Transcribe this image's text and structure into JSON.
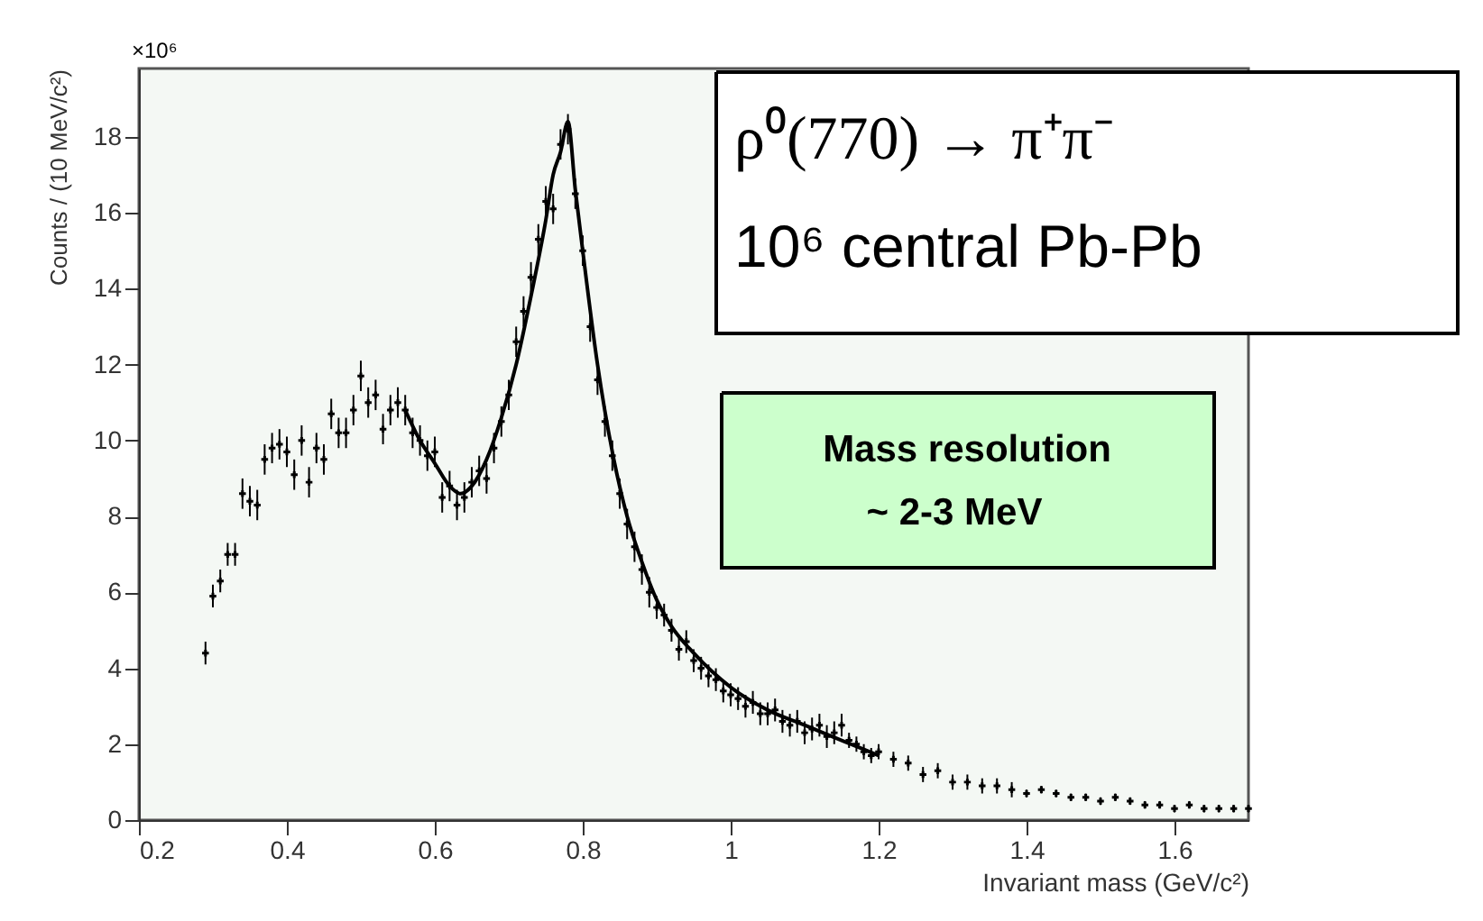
{
  "chart_data": {
    "type": "scatter",
    "xlabel": "Invariant mass (GeV/c²)",
    "ylabel": "Counts / (10 MeV/c²)",
    "xlim": [
      0.2,
      1.7
    ],
    "ylim": [
      0,
      19.8
    ],
    "xticks": [
      0.2,
      0.4,
      0.6,
      0.8,
      1,
      1.2,
      1.4,
      1.6
    ],
    "yticks": [
      0,
      2,
      4,
      6,
      8,
      10,
      12,
      14,
      16,
      18
    ],
    "grid": false,
    "marker": "cross",
    "annotations": [
      "×10⁶",
      "ρ⁰(770)  → π⁺π⁻",
      "10⁶ central Pb-Pb",
      "Mass resolution",
      "~ 2-3 MeV"
    ],
    "series": [
      {
        "color": "#000000",
        "x": [
          0.29,
          0.3,
          0.31,
          0.32,
          0.33,
          0.34,
          0.35,
          0.36,
          0.37,
          0.38,
          0.39,
          0.4,
          0.41,
          0.42,
          0.43,
          0.44,
          0.45,
          0.46,
          0.47,
          0.48,
          0.49,
          0.5,
          0.51,
          0.52,
          0.53,
          0.54,
          0.55,
          0.56,
          0.57,
          0.58,
          0.59,
          0.6,
          0.61,
          0.62,
          0.63,
          0.64,
          0.65,
          0.66,
          0.67,
          0.68,
          0.69,
          0.7,
          0.71,
          0.72,
          0.73,
          0.74,
          0.75,
          0.76,
          0.77,
          0.78,
          0.79,
          0.8,
          0.81,
          0.82,
          0.83,
          0.84,
          0.85,
          0.86,
          0.87,
          0.88,
          0.89,
          0.9,
          0.91,
          0.92,
          0.93,
          0.94,
          0.95,
          0.96,
          0.97,
          0.98,
          0.99,
          1.0,
          1.01,
          1.02,
          1.03,
          1.04,
          1.05,
          1.06,
          1.07,
          1.08,
          1.09,
          1.1,
          1.11,
          1.12,
          1.13,
          1.14,
          1.15,
          1.16,
          1.17,
          1.18,
          1.19,
          1.2,
          1.22,
          1.24,
          1.26,
          1.28,
          1.3,
          1.32,
          1.34,
          1.36,
          1.38,
          1.4,
          1.42,
          1.44,
          1.46,
          1.48,
          1.5,
          1.52,
          1.54,
          1.56,
          1.58,
          1.6,
          1.62,
          1.64,
          1.66,
          1.68,
          1.7
        ],
        "values": [
          4.4,
          5.9,
          6.3,
          7.0,
          7.0,
          8.6,
          8.4,
          8.3,
          9.5,
          9.8,
          9.9,
          9.7,
          9.1,
          10.0,
          8.9,
          9.8,
          9.5,
          10.7,
          10.2,
          10.2,
          10.8,
          11.7,
          11.0,
          11.2,
          10.3,
          10.8,
          11.0,
          10.8,
          10.2,
          10.0,
          9.6,
          9.7,
          8.5,
          8.8,
          8.3,
          8.5,
          8.9,
          9.2,
          9.0,
          9.8,
          10.5,
          11.2,
          12.6,
          13.4,
          14.3,
          15.3,
          16.3,
          16.1,
          17.8,
          18.2,
          16.5,
          15.0,
          13.0,
          11.6,
          10.5,
          9.6,
          8.6,
          7.8,
          7.2,
          6.6,
          6.0,
          5.6,
          5.4,
          5.0,
          4.5,
          4.7,
          4.2,
          4.0,
          3.8,
          3.7,
          3.4,
          3.3,
          3.2,
          3.0,
          3.1,
          2.8,
          2.8,
          2.9,
          2.6,
          2.5,
          2.6,
          2.3,
          2.4,
          2.5,
          2.2,
          2.3,
          2.5,
          2.1,
          2.0,
          1.8,
          1.7,
          1.8,
          1.6,
          1.5,
          1.2,
          1.3,
          1.0,
          1.0,
          0.9,
          0.9,
          0.8,
          0.7,
          0.8,
          0.7,
          0.6,
          0.6,
          0.5,
          0.6,
          0.5,
          0.4,
          0.4,
          0.3,
          0.4,
          0.3,
          0.3,
          0.3,
          0.3
        ],
        "errors": [
          0.3,
          0.3,
          0.3,
          0.3,
          0.3,
          0.4,
          0.4,
          0.4,
          0.4,
          0.4,
          0.4,
          0.4,
          0.4,
          0.4,
          0.4,
          0.4,
          0.4,
          0.4,
          0.4,
          0.4,
          0.4,
          0.4,
          0.4,
          0.4,
          0.4,
          0.4,
          0.4,
          0.4,
          0.4,
          0.4,
          0.4,
          0.4,
          0.4,
          0.4,
          0.4,
          0.4,
          0.4,
          0.4,
          0.4,
          0.4,
          0.4,
          0.4,
          0.4,
          0.4,
          0.4,
          0.4,
          0.4,
          0.4,
          0.4,
          0.4,
          0.4,
          0.4,
          0.4,
          0.4,
          0.4,
          0.4,
          0.4,
          0.4,
          0.4,
          0.4,
          0.4,
          0.3,
          0.3,
          0.3,
          0.3,
          0.3,
          0.3,
          0.3,
          0.3,
          0.3,
          0.3,
          0.3,
          0.3,
          0.3,
          0.3,
          0.3,
          0.3,
          0.3,
          0.3,
          0.3,
          0.3,
          0.3,
          0.3,
          0.3,
          0.3,
          0.3,
          0.3,
          0.2,
          0.2,
          0.2,
          0.2,
          0.2,
          0.2,
          0.2,
          0.2,
          0.2,
          0.2,
          0.2,
          0.2,
          0.2,
          0.2,
          0.1,
          0.1,
          0.1,
          0.1,
          0.1,
          0.1,
          0.1,
          0.1,
          0.1,
          0.1,
          0.1,
          0.1,
          0.1,
          0.1,
          0.1,
          0.1
        ]
      },
      {
        "type": "line",
        "color": "#000000",
        "line_style": "solid",
        "marker": "none",
        "x": [
          0.56,
          0.58,
          0.6,
          0.62,
          0.635,
          0.65,
          0.67,
          0.69,
          0.71,
          0.73,
          0.75,
          0.76,
          0.77,
          0.78,
          0.79,
          0.8,
          0.82,
          0.84,
          0.86,
          0.88,
          0.9,
          0.92,
          0.95,
          1.0,
          1.05,
          1.1,
          1.15,
          1.2
        ],
        "values": [
          10.8,
          10.0,
          9.4,
          8.8,
          8.6,
          8.8,
          9.5,
          10.6,
          12.0,
          13.8,
          15.8,
          17.0,
          17.6,
          18.4,
          16.6,
          15.0,
          12.0,
          9.7,
          8.0,
          6.8,
          5.8,
          5.1,
          4.4,
          3.5,
          2.9,
          2.5,
          2.1,
          1.7
        ]
      }
    ]
  }
}
